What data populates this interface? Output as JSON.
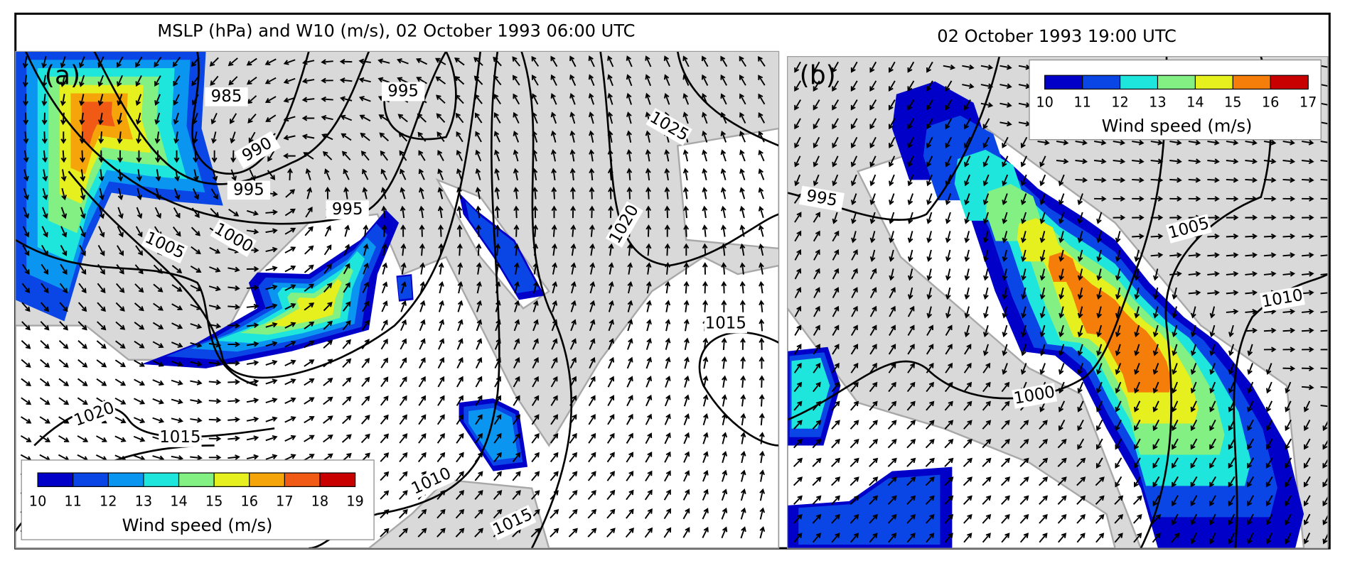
{
  "panels": [
    {
      "label": "(a)",
      "title": "MSLP (hPa) and W10 (m/s), 02 October 1993 06:00 UTC",
      "isobar_labels": [
        985,
        990,
        995,
        995,
        995,
        1000,
        1005,
        1010,
        1015,
        1015,
        1020,
        1020,
        1025,
        1015
      ],
      "colorbar": {
        "ticks": [
          10,
          11,
          12,
          13,
          14,
          15,
          16,
          17,
          18,
          19
        ],
        "colors": [
          "#0000c8",
          "#0a46e6",
          "#0a96f0",
          "#1ee6dc",
          "#82f082",
          "#e6f01e",
          "#f5a50a",
          "#f05a14",
          "#c80000"
        ],
        "label": "Wind speed (m/s)"
      }
    },
    {
      "label": "(b)",
      "title": "02 October 1993 19:00 UTC",
      "isobar_labels": [
        995,
        1000,
        1005,
        1010
      ],
      "colorbar": {
        "ticks": [
          10,
          11,
          12,
          13,
          14,
          15,
          16,
          17
        ],
        "colors": [
          "#0000c8",
          "#0a46e6",
          "#1ee6dc",
          "#82f082",
          "#e6f01e",
          "#f57d0a",
          "#c80000"
        ],
        "label": "Wind speed (m/s)"
      }
    }
  ]
}
